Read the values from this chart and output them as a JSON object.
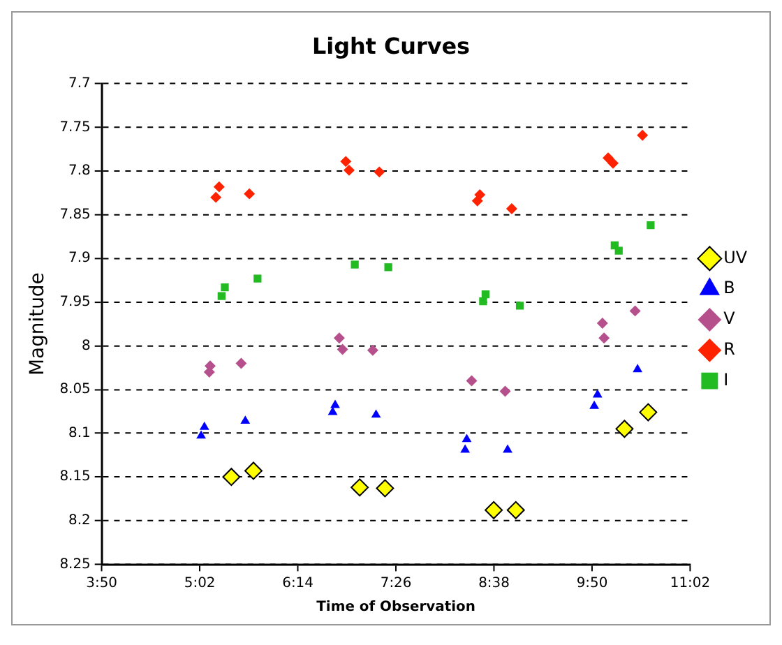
{
  "chart_data": {
    "type": "scatter",
    "title": "Light Curves",
    "xlabel": "Time of Observation",
    "ylabel": "Magnitude",
    "xlim": [
      3.8333,
      11.0333
    ],
    "xticks": [
      {
        "value": 3.8333,
        "label": "3:50"
      },
      {
        "value": 5.0333,
        "label": "5:02"
      },
      {
        "value": 6.2333,
        "label": "6:14"
      },
      {
        "value": 7.4333,
        "label": "7:26"
      },
      {
        "value": 8.6333,
        "label": "8:38"
      },
      {
        "value": 9.8333,
        "label": "9:50"
      },
      {
        "value": 11.0333,
        "label": "11:02"
      }
    ],
    "ylim": [
      8.25,
      7.7
    ],
    "yticks": [
      7.7,
      7.75,
      7.8,
      7.85,
      7.9,
      7.95,
      8,
      8.05,
      8.1,
      8.15,
      8.2,
      8.25
    ],
    "grid": "y",
    "legend": "right",
    "series": [
      {
        "name": "UV",
        "color": "#ffff00",
        "marker": "diamond",
        "x": [
          5.42,
          5.69,
          6.99,
          7.3,
          8.63,
          8.9,
          10.23,
          10.52
        ],
        "values": [
          8.15,
          8.143,
          8.162,
          8.163,
          8.188,
          8.188,
          8.095,
          8.076
        ]
      },
      {
        "name": "B",
        "color": "#0000ff",
        "marker": "triangle",
        "x": [
          5.05,
          5.09,
          5.59,
          6.66,
          6.69,
          7.19,
          8.28,
          8.3,
          8.8,
          9.86,
          9.9,
          10.39
        ],
        "values": [
          8.103,
          8.093,
          8.086,
          8.076,
          8.068,
          8.079,
          8.119,
          8.107,
          8.119,
          8.069,
          8.056,
          8.027
        ]
      },
      {
        "name": "V",
        "color": "#b5508c",
        "marker": "diamond",
        "x": [
          5.15,
          5.16,
          5.54,
          6.74,
          6.78,
          7.15,
          8.36,
          8.77,
          9.96,
          9.98,
          10.36
        ],
        "values": [
          8.03,
          8.023,
          8.02,
          7.991,
          8.004,
          8.005,
          8.04,
          8.052,
          7.974,
          7.991,
          7.96
        ]
      },
      {
        "name": "R",
        "color": "#ff2200",
        "marker": "diamond",
        "x": [
          5.23,
          5.27,
          5.64,
          6.82,
          6.86,
          7.23,
          8.43,
          8.46,
          8.85,
          10.03,
          10.09,
          10.45
        ],
        "values": [
          7.83,
          7.818,
          7.826,
          7.789,
          7.799,
          7.801,
          7.834,
          7.827,
          7.843,
          7.785,
          7.791,
          7.759
        ]
      },
      {
        "name": "I",
        "color": "#22bb22",
        "marker": "square",
        "x": [
          5.3,
          5.34,
          5.74,
          6.93,
          7.34,
          8.5,
          8.53,
          8.95,
          10.11,
          10.16,
          10.55
        ],
        "values": [
          7.943,
          7.933,
          7.923,
          7.907,
          7.91,
          7.949,
          7.941,
          7.954,
          7.885,
          7.891,
          7.862
        ]
      }
    ]
  }
}
